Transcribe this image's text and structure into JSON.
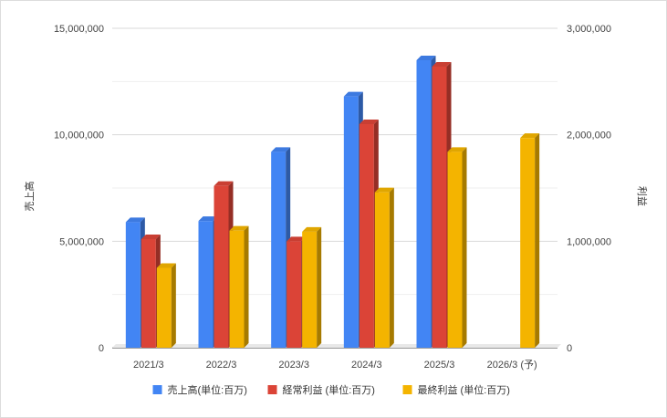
{
  "chart_data": {
    "type": "bar",
    "title": "",
    "categories": [
      "2021/3",
      "2022/3",
      "2023/3",
      "2024/3",
      "2025/3",
      "2026/3 (予)"
    ],
    "series": [
      {
        "name": "売上高(単位:百万)",
        "axis": "left",
        "color": "#4285f4",
        "values": [
          5900000,
          5950000,
          9200000,
          11800000,
          13500000,
          null
        ]
      },
      {
        "name": "経常利益 (単位:百万)",
        "axis": "right",
        "color": "#db4437",
        "values": [
          1020000,
          1520000,
          1000000,
          2100000,
          2640000,
          null
        ]
      },
      {
        "name": "最終利益 (単位:百万)",
        "axis": "right",
        "color": "#f4b400",
        "values": [
          750000,
          1100000,
          1090000,
          1460000,
          1840000,
          1970000
        ]
      }
    ],
    "y_left": {
      "label": "売上高",
      "min": 0,
      "max": 15000000,
      "ticks": [
        "0",
        "5,000,000",
        "10,000,000",
        "15,000,000"
      ],
      "tick_values": [
        0,
        5000000,
        10000000,
        15000000
      ]
    },
    "y_right": {
      "label": "利益",
      "min": 0,
      "max": 3000000,
      "ticks": [
        "0",
        "1,000,000",
        "2,000,000",
        "3,000,000"
      ],
      "tick_values": [
        0,
        1000000,
        2000000,
        3000000
      ]
    },
    "grid": true,
    "legend_position": "bottom",
    "style": "3d-bar"
  }
}
